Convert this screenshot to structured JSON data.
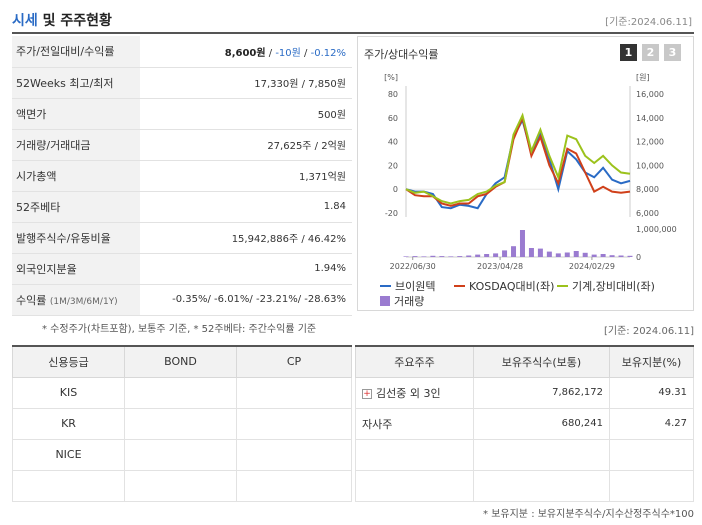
{
  "header": {
    "title_part1": "시세",
    "title_part2": "및 주주현황",
    "stamp": "[기준:2024.06.11]"
  },
  "summary": {
    "price_row": {
      "label": "주가/전일대비/수익률",
      "price": "8,600원",
      "sep1": " / ",
      "change": "-10원",
      "sep2": " / ",
      "rate": "-0.12%"
    },
    "rows": [
      {
        "label": "52Weeks 최고/최저",
        "value": "17,330원 / 7,850원"
      },
      {
        "label": "액면가",
        "value": "500원"
      },
      {
        "label": "거래량/거래대금",
        "value": "27,625주 / 2억원"
      },
      {
        "label": "시가총액",
        "value": "1,371억원"
      },
      {
        "label": "52주베타",
        "value": "1.84"
      },
      {
        "label": "발행주식수/유동비율",
        "value": "15,942,886주 / 46.42%"
      },
      {
        "label": "외국인지분율",
        "value": "1.94%"
      }
    ],
    "return_row": {
      "label": "수익률",
      "label_sub": "(1M/3M/6M/1Y)",
      "value": "-0.35%/ -6.01%/ -23.21%/ -28.63%"
    },
    "note": "* 수정주가(차트포함), 보통주 기준, * 52주베타: 주간수익률 기준"
  },
  "chart_panel": {
    "title": "주가/상대수익률",
    "tabs": [
      "1",
      "2",
      "3"
    ],
    "active_tab": "1"
  },
  "chart_data": {
    "type": "line",
    "left_unit": "[%]",
    "right_unit": "[원]",
    "left_ticks": [
      "80",
      "60",
      "40",
      "20",
      "0",
      "-20"
    ],
    "right_ticks": [
      "16,000",
      "14,000",
      "12,000",
      "10,000",
      "8,000",
      "6,000"
    ],
    "volume_tick": "1,000,000",
    "volume_zero": "0",
    "x_labels": [
      "2022/06/30",
      "2023/04/28",
      "2024/02/29"
    ],
    "left_range": [
      -20,
      80
    ],
    "series": [
      {
        "name": "브이원텍",
        "color": "#2a6bc5",
        "values": [
          0,
          -2,
          -2,
          -4,
          -15,
          -16,
          -13,
          -14,
          -16,
          -4,
          5,
          10,
          44,
          58,
          30,
          48,
          25,
          0,
          32,
          25,
          14,
          10,
          18,
          8,
          5,
          7
        ]
      },
      {
        "name": "KOSDAQ대비(좌)",
        "color": "#d0401a",
        "values": [
          0,
          -5,
          -6,
          -6,
          -12,
          -14,
          -12,
          -12,
          -6,
          -4,
          2,
          6,
          42,
          60,
          28,
          44,
          20,
          5,
          34,
          30,
          14,
          -2,
          2,
          -2,
          -3,
          -2
        ]
      },
      {
        "name": "기계,장비대비(좌)",
        "color": "#9cc21c",
        "values": [
          0,
          -3,
          -2,
          -6,
          -10,
          -12,
          -10,
          -9,
          -4,
          -2,
          3,
          6,
          46,
          62,
          32,
          50,
          28,
          10,
          45,
          42,
          28,
          22,
          28,
          20,
          14,
          13
        ]
      }
    ],
    "volume": {
      "name": "거래량",
      "color": "#9a7bd0",
      "values": [
        0.02,
        0.03,
        0.02,
        0.04,
        0.03,
        0.02,
        0.03,
        0.05,
        0.08,
        0.1,
        0.12,
        0.22,
        0.36,
        0.9,
        0.3,
        0.28,
        0.18,
        0.12,
        0.15,
        0.2,
        0.14,
        0.08,
        0.1,
        0.06,
        0.05,
        0.04
      ]
    }
  },
  "updated_stamp": "[기준: 2024.06.11]",
  "credit": {
    "headers": [
      "신용등급",
      "BOND",
      "CP"
    ],
    "rows": [
      [
        "KIS",
        "",
        ""
      ],
      [
        "KR",
        "",
        ""
      ],
      [
        "NICE",
        "",
        ""
      ],
      [
        "",
        "",
        ""
      ]
    ]
  },
  "holders": {
    "headers": [
      "주요주주",
      "보유주식수(보통)",
      "보유지분(%)"
    ],
    "rows": [
      {
        "name": "김선중 외 3인",
        "shares": "7,862,172",
        "pct": "49.31",
        "expand": "+"
      },
      {
        "name": "자사주",
        "shares": "680,241",
        "pct": "4.27",
        "expand": ""
      },
      {
        "name": "",
        "shares": "",
        "pct": "",
        "expand": ""
      },
      {
        "name": "",
        "shares": "",
        "pct": "",
        "expand": ""
      }
    ],
    "note": "* 보유지분 : 보유지분주식수/지수산정주식수*100"
  }
}
